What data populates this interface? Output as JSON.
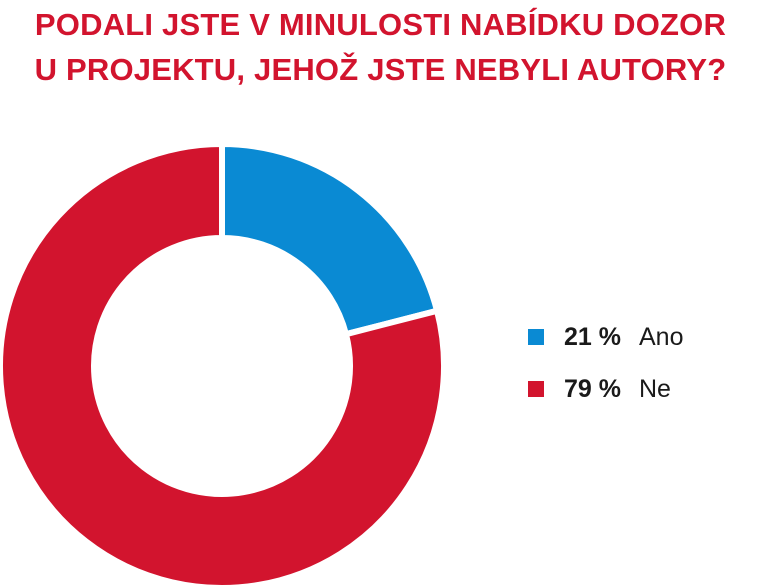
{
  "chart_data": {
    "type": "pie",
    "title_lines": [
      "PODALI JSTE V MINULOSTI NABÍDKU DOZOR",
      "U PROJEKTU, JEHOŽ JSTE NEBYLI AUTORY?"
    ],
    "categories": [
      "Ano",
      "Ne"
    ],
    "values": [
      21,
      79
    ],
    "value_labels": [
      "21 %",
      "79 %"
    ],
    "colors": [
      "#0a8ad3",
      "#d2142e"
    ],
    "donut": true,
    "legend_placement": "right"
  }
}
